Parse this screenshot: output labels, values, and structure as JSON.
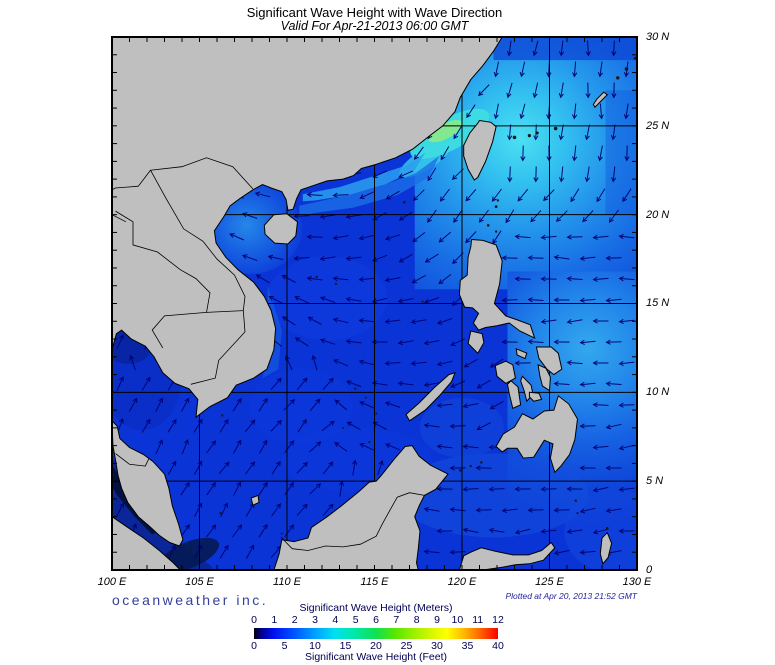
{
  "title": "Significant Wave Height with Wave Direction",
  "subtitle": "Valid For Apr-21-2013 06:00 GMT",
  "branding": "oceanweather inc.",
  "plotted_at": "Plotted at Apr 20, 2013 21:52 GMT",
  "colors": {
    "ocean_base": "#0a34d6",
    "land": "#bfbfbf",
    "coastline": "#000000",
    "grid": "#000000",
    "arrow": "#000070",
    "frame": "#000000",
    "brand_text": "#35429b",
    "legend_text": "#000050"
  },
  "axes": {
    "lon_ticks": [
      "100 E",
      "105 E",
      "110 E",
      "115 E",
      "120 E",
      "125 E",
      "130 E"
    ],
    "lat_ticks": [
      "30 N",
      "25 N",
      "20 N",
      "15 N",
      "10 N",
      "5 N",
      "0"
    ]
  },
  "legend": {
    "meters_label": "Significant Wave Height (Meters)",
    "feet_label": "Significant Wave Height (Feet)",
    "ticks_meters": [
      "0",
      "1",
      "2",
      "3",
      "4",
      "5",
      "6",
      "7",
      "8",
      "9",
      "10",
      "11",
      "12"
    ],
    "ticks_feet": [
      "0",
      "5",
      "10",
      "15",
      "20",
      "25",
      "30",
      "35",
      "40"
    ],
    "gradient_stops": [
      [
        0,
        "#000008"
      ],
      [
        3,
        "#000090"
      ],
      [
        8,
        "#0010f0"
      ],
      [
        16,
        "#0050ff"
      ],
      [
        25,
        "#00a0ff"
      ],
      [
        33,
        "#00e0f0"
      ],
      [
        41,
        "#00e8a8"
      ],
      [
        50,
        "#10e050"
      ],
      [
        58,
        "#58e800"
      ],
      [
        66,
        "#a0f000"
      ],
      [
        74,
        "#e0f800"
      ],
      [
        79,
        "#ffff00"
      ],
      [
        86,
        "#ffb800"
      ],
      [
        93,
        "#ff6000"
      ],
      [
        100,
        "#f80000"
      ]
    ]
  },
  "chart_data": {
    "type": "heatmap",
    "title": "Significant Wave Height with Wave Direction",
    "valid_for": "Apr-21-2013 06:00 GMT",
    "plotted_at": "Apr 20, 2013 21:52 GMT",
    "lon_range_deg_e": [
      100,
      130
    ],
    "lat_range_deg_n": [
      0,
      30
    ],
    "grid_interval_deg": 5,
    "tick_interval_deg": 1,
    "xlabel_ticks": [
      "100 E",
      "105 E",
      "110 E",
      "115 E",
      "120 E",
      "125 E",
      "130 E"
    ],
    "ylabel_ticks": [
      "30 N",
      "25 N",
      "20 N",
      "15 N",
      "10 N",
      "5 N",
      "0"
    ],
    "colorbar": {
      "label_primary": "Significant Wave Height (Meters)",
      "range_meters": [
        0,
        12
      ],
      "label_secondary": "Significant Wave Height (Feet)",
      "range_feet": [
        0,
        40
      ],
      "palette": "jet (black-blue-cyan-green-yellow-red)"
    },
    "vector_overlay": "wave direction arrows, dark navy",
    "wave_field": [
      {
        "region": "Taiwan Strait",
        "shw_m": 3.5,
        "direction_toward": "SW"
      },
      {
        "region": "Seas E/NE of Taiwan and Ryukyu chain",
        "shw_m": 2.5,
        "direction_toward": "S"
      },
      {
        "region": "NW Pacific near 30N 130E",
        "shw_m": 1.8,
        "direction_toward": "S"
      },
      {
        "region": "Luzon Strait",
        "shw_m": 2.0,
        "direction_toward": "SW"
      },
      {
        "region": "South China coastal band",
        "shw_m": 2.5,
        "direction_toward": "SW"
      },
      {
        "region": "Gulf of Tonkin",
        "shw_m": 2.0,
        "direction_toward": "SW"
      },
      {
        "region": "Central South China Sea",
        "shw_m": 1.2,
        "direction_toward": "W-NW"
      },
      {
        "region": "Southern South China Sea",
        "shw_m": 1.0,
        "direction_toward": "NE"
      },
      {
        "region": "Philippine Sea east of Philippines",
        "shw_m": 1.6,
        "direction_toward": "W"
      },
      {
        "region": "Sulu and Celebes Seas",
        "shw_m": 1.2,
        "direction_toward": "W"
      },
      {
        "region": "Gulf of Thailand",
        "shw_m": 0.7,
        "direction_toward": "NE"
      },
      {
        "region": "Strait of Malacca",
        "shw_m": 0.1,
        "direction_toward": "calm"
      }
    ]
  }
}
